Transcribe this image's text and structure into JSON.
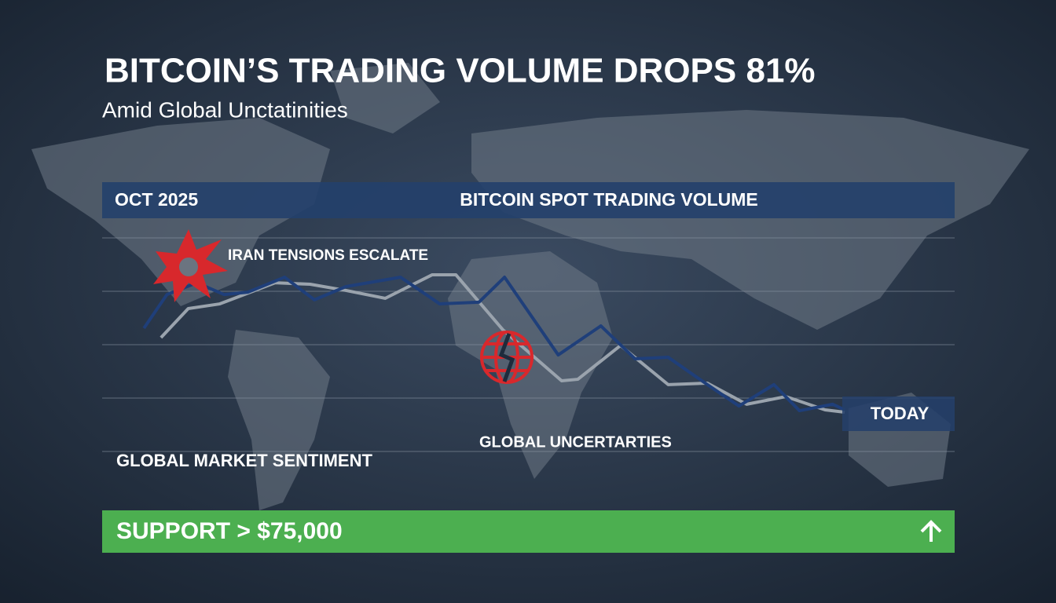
{
  "chart_data": {
    "type": "line",
    "title": "BITCOIN’S TRADING VOLUME DROPS 81%",
    "subtitle": "Amid Global Unctatinities",
    "period_start": "OCT 2025",
    "chart_title": "BITCOIN SPOT TRADING VOLUME",
    "end_label": "TODAY",
    "annotations": [
      "IRAN TENSIONS ESCALATE",
      "GLOBAL UNCERTARTIES",
      "GLOBAL MARKET SENTIMENT"
    ],
    "banner": "SUPPORT > $75,000",
    "xlim": [
      0,
      100
    ],
    "ylim": [
      0,
      100
    ],
    "series": [
      {
        "color": "#1f3f7a",
        "x": [
          4.9,
          7.6,
          11.1,
          14.3,
          17.1,
          21.4,
          24.9,
          28.6,
          35.0,
          39.6,
          44.2,
          47.2,
          53.5,
          58.5,
          62.5,
          66.4,
          71.0,
          74.7,
          78.8,
          81.8,
          85.7,
          87.1
        ],
        "values": [
          57.7,
          73.5,
          79.0,
          73.5,
          74.6,
          81.6,
          71.0,
          77.2,
          81.6,
          69.1,
          69.9,
          81.6,
          45.2,
          58.8,
          43.4,
          44.1,
          31.3,
          21.3,
          31.3,
          19.1,
          22.1,
          19.5
        ]
      },
      {
        "color": "#9aa3ad",
        "x": [
          6.9,
          10.1,
          13.8,
          20.3,
          24.4,
          28.6,
          33.2,
          38.7,
          41.5,
          47.0,
          53.9,
          55.8,
          60.8,
          66.4,
          71.0,
          75.6,
          80.2,
          84.8,
          87.1
        ],
        "values": [
          53.3,
          66.9,
          69.1,
          79.0,
          78.3,
          75.4,
          71.7,
          82.7,
          82.7,
          57.0,
          33.1,
          33.8,
          49.6,
          31.3,
          32.0,
          22.1,
          25.7,
          19.5,
          18.4
        ]
      }
    ]
  }
}
